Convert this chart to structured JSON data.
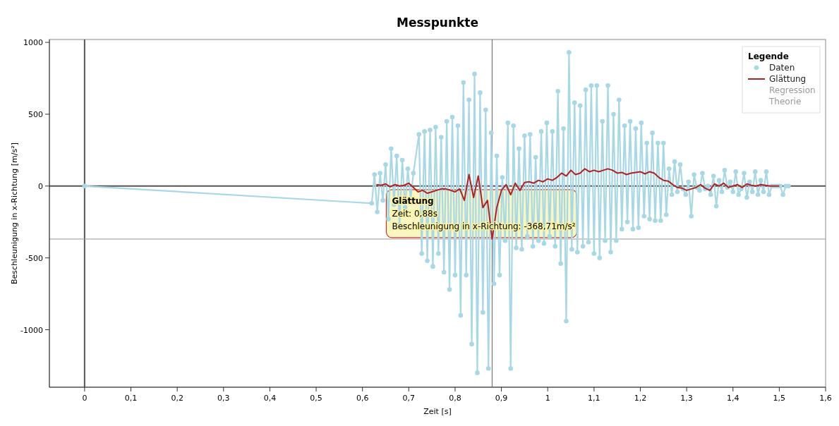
{
  "chart_data": {
    "type": "line",
    "title": "Messpunkte",
    "xlabel": "Zeit [s]",
    "ylabel": "Beschleunigung in x-Richtung [m/s²]",
    "legend_title": "Legende",
    "legend": "top right",
    "xlim": [
      -0.076,
      1.6
    ],
    "ylim": [
      -1400,
      1020
    ],
    "xticks": [
      {
        "value": 0,
        "label": "0"
      },
      {
        "value": 0.1,
        "label": "0,1"
      },
      {
        "value": 0.2,
        "label": "0,2"
      },
      {
        "value": 0.3,
        "label": "0,3"
      },
      {
        "value": 0.4,
        "label": "0,4"
      },
      {
        "value": 0.5,
        "label": "0,5"
      },
      {
        "value": 0.6,
        "label": "0,6"
      },
      {
        "value": 0.7,
        "label": "0,7"
      },
      {
        "value": 0.8,
        "label": "0,8"
      },
      {
        "value": 0.9,
        "label": "0,9"
      },
      {
        "value": 1,
        "label": "1"
      },
      {
        "value": 1.1,
        "label": "1,1"
      },
      {
        "value": 1.2,
        "label": "1,2"
      },
      {
        "value": 1.3,
        "label": "1,3"
      },
      {
        "value": 1.4,
        "label": "1,4"
      },
      {
        "value": 1.5,
        "label": "1,5"
      },
      {
        "value": 1.6,
        "label": "1,6"
      }
    ],
    "yticks": [
      -1000,
      -500,
      0,
      500,
      1000
    ],
    "grid": false,
    "ref_lines": [
      {
        "axis": "x",
        "value": 0,
        "color": "#555555"
      },
      {
        "axis": "y",
        "value": 0,
        "color": "#555555"
      },
      {
        "axis": "x",
        "value": 0.88,
        "color": "#777777"
      },
      {
        "axis": "y",
        "value": -368.71,
        "color": "#999999"
      }
    ],
    "annotations": [
      {
        "text": "Glättung\nZeit: 0,88s\nBeschleunigung in x-Richtung: -368,71m/s²",
        "x": 0.88,
        "y": -368.71
      }
    ],
    "series": [
      {
        "name": "Daten",
        "marker": "circle",
        "color": "#a8d8e6",
        "x": [
          0,
          0.62,
          0.626,
          0.632,
          0.638,
          0.644,
          0.65,
          0.656,
          0.662,
          0.668,
          0.674,
          0.68,
          0.686,
          0.692,
          0.698,
          0.704,
          0.71,
          0.716,
          0.722,
          0.728,
          0.734,
          0.74,
          0.746,
          0.752,
          0.758,
          0.764,
          0.77,
          0.776,
          0.782,
          0.788,
          0.794,
          0.8,
          0.806,
          0.812,
          0.818,
          0.824,
          0.83,
          0.836,
          0.842,
          0.848,
          0.854,
          0.86,
          0.866,
          0.872,
          0.878,
          0.884,
          0.89,
          0.896,
          0.902,
          0.908,
          0.914,
          0.92,
          0.926,
          0.932,
          0.938,
          0.944,
          0.95,
          0.956,
          0.962,
          0.968,
          0.974,
          0.98,
          0.986,
          0.992,
          0.998,
          1.004,
          1.01,
          1.016,
          1.022,
          1.028,
          1.034,
          1.04,
          1.046,
          1.052,
          1.058,
          1.064,
          1.07,
          1.076,
          1.082,
          1.088,
          1.094,
          1.1,
          1.106,
          1.112,
          1.118,
          1.124,
          1.13,
          1.136,
          1.142,
          1.148,
          1.154,
          1.16,
          1.166,
          1.172,
          1.178,
          1.184,
          1.19,
          1.196,
          1.202,
          1.208,
          1.214,
          1.22,
          1.226,
          1.232,
          1.238,
          1.244,
          1.25,
          1.256,
          1.262,
          1.268,
          1.274,
          1.28,
          1.286,
          1.292,
          1.298,
          1.304,
          1.31,
          1.316,
          1.322,
          1.328,
          1.334,
          1.34,
          1.346,
          1.352,
          1.358,
          1.364,
          1.37,
          1.376,
          1.382,
          1.388,
          1.394,
          1.4,
          1.406,
          1.412,
          1.418,
          1.424,
          1.43,
          1.436,
          1.442,
          1.448,
          1.454,
          1.46,
          1.466,
          1.472,
          1.478,
          1.484,
          1.49,
          1.496,
          1.502,
          1.508,
          1.514,
          1.52
        ],
        "values": [
          0,
          -120,
          80,
          -180,
          90,
          -100,
          150,
          -230,
          260,
          -130,
          210,
          -270,
          180,
          -150,
          120,
          -90,
          90,
          null,
          360,
          -470,
          380,
          -520,
          390,
          -560,
          410,
          -470,
          340,
          -600,
          450,
          -720,
          480,
          -620,
          420,
          -900,
          720,
          -620,
          600,
          -1100,
          780,
          -1300,
          650,
          -880,
          530,
          -1270,
          370,
          -680,
          210,
          -620,
          60,
          -380,
          440,
          -1270,
          420,
          -430,
          260,
          -440,
          350,
          -350,
          360,
          -420,
          200,
          -380,
          380,
          -400,
          440,
          -350,
          380,
          -420,
          660,
          -540,
          400,
          -940,
          930,
          -440,
          580,
          -460,
          560,
          -420,
          670,
          -390,
          700,
          -470,
          700,
          -500,
          450,
          -380,
          700,
          -460,
          500,
          -380,
          600,
          -300,
          420,
          -250,
          450,
          -300,
          400,
          -290,
          440,
          -210,
          300,
          -230,
          370,
          -240,
          300,
          -240,
          300,
          -200,
          120,
          -60,
          170,
          -40,
          150,
          -20,
          -60,
          30,
          -210,
          80,
          -10,
          -30,
          90,
          -20,
          0,
          -60,
          70,
          -140,
          40,
          -40,
          110,
          -10,
          30,
          -40,
          100,
          -60,
          -20,
          90,
          -80,
          30,
          -40,
          100,
          -60,
          40,
          -40,
          100,
          -60,
          0,
          0,
          0,
          0,
          -60,
          0,
          0
        ]
      },
      {
        "name": "Glättung",
        "marker": "none",
        "color": "#b22222",
        "x": [
          0.63,
          0.64,
          0.65,
          0.66,
          0.67,
          0.68,
          0.69,
          0.7,
          0.71,
          0.72,
          0.73,
          0.74,
          0.75,
          0.76,
          0.77,
          0.78,
          0.79,
          0.8,
          0.81,
          0.82,
          0.83,
          0.84,
          0.85,
          0.86,
          0.87,
          0.88,
          0.89,
          0.9,
          0.91,
          0.92,
          0.93,
          0.94,
          0.95,
          0.96,
          0.97,
          0.98,
          0.99,
          1,
          1.01,
          1.02,
          1.03,
          1.04,
          1.05,
          1.06,
          1.07,
          1.08,
          1.09,
          1.1,
          1.11,
          1.12,
          1.13,
          1.14,
          1.15,
          1.16,
          1.17,
          1.18,
          1.19,
          1.2,
          1.21,
          1.22,
          1.23,
          1.24,
          1.25,
          1.26,
          1.27,
          1.28,
          1.29,
          1.3,
          1.31,
          1.32,
          1.33,
          1.34,
          1.35,
          1.36,
          1.37,
          1.38,
          1.39,
          1.4,
          1.41,
          1.42,
          1.43,
          1.44,
          1.45,
          1.46,
          1.47,
          1.48,
          1.49,
          1.5
        ],
        "values": [
          10,
          5,
          15,
          -5,
          10,
          0,
          5,
          20,
          -10,
          -40,
          -30,
          -50,
          -40,
          -30,
          -20,
          -20,
          -30,
          -40,
          -20,
          -100,
          80,
          -80,
          70,
          -150,
          -100,
          -368.71,
          -150,
          -30,
          10,
          -60,
          20,
          -30,
          25,
          30,
          20,
          40,
          30,
          50,
          40,
          60,
          90,
          70,
          110,
          80,
          90,
          120,
          100,
          110,
          100,
          110,
          120,
          110,
          90,
          95,
          80,
          90,
          95,
          100,
          85,
          100,
          90,
          60,
          40,
          35,
          10,
          -10,
          -15,
          -30,
          -20,
          -10,
          10,
          -15,
          -30,
          15,
          0,
          20,
          -10,
          0,
          10,
          -10,
          15,
          5,
          0,
          10,
          5,
          0,
          0,
          0
        ]
      },
      {
        "name": "Regression",
        "marker": "none",
        "color": "#9a9a9a"
      },
      {
        "name": "Theorie",
        "marker": "none",
        "color": "#9a9a9a"
      }
    ]
  }
}
